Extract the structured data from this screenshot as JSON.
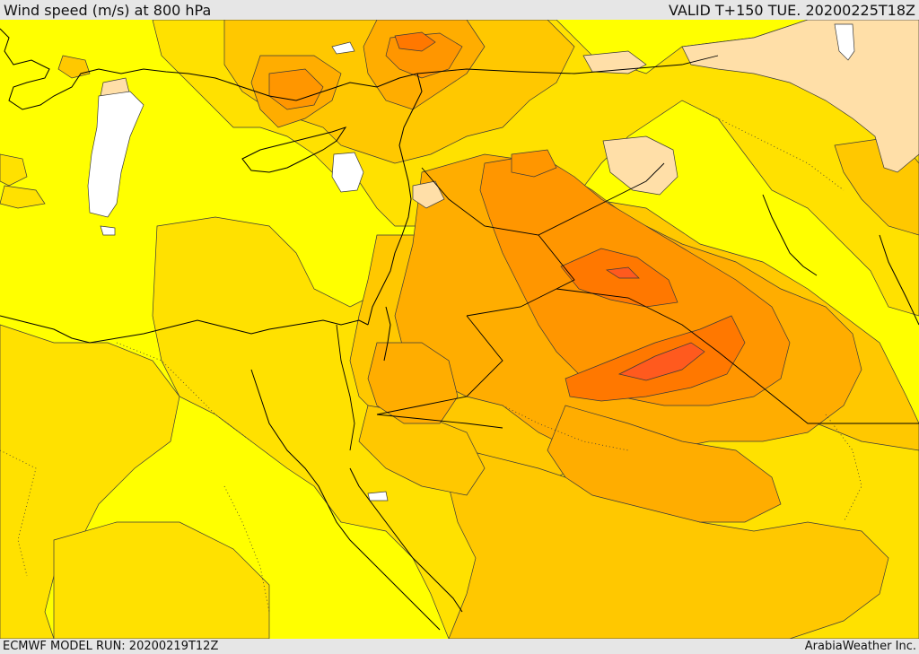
{
  "header": {
    "title": "Wind speed (m/s) at 800 hPa",
    "valid": "VALID T+150 TUE. 20200225T18Z"
  },
  "footer": {
    "model_run": "ECMWF MODEL RUN: 20200219T12Z",
    "provider": "ArabiaWeather Inc."
  },
  "palette": {
    "calm": "#ffffff",
    "light": "#ffffff00",
    "band_1": "#ffff00",
    "band_2": "#ffe100",
    "band_3": "#ffc800",
    "band_4": "#ffad00",
    "band_5": "#ff9600",
    "band_6": "#ff7800",
    "band_7": "#ff5a1e",
    "pale_peach": "#ffdfa8",
    "coastline": "#000000",
    "contour": "#3a3a3a"
  }
}
